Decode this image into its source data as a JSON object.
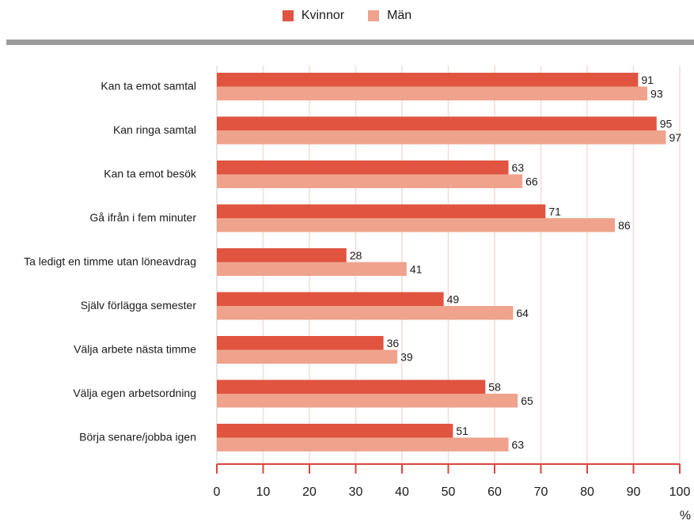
{
  "legend": [
    {
      "label": "Kvinnor",
      "color": "#e05440"
    },
    {
      "label": "Män",
      "color": "#efa38d"
    }
  ],
  "chart_data": {
    "type": "bar",
    "orientation": "horizontal",
    "categories": [
      "Kan ta emot samtal",
      "Kan ringa samtal",
      "Kan ta emot besök",
      "Gå ifrån i fem minuter",
      "Ta ledigt en timme utan löneavdrag",
      "Själv förlägga semester",
      "Välja arbete nästa timme",
      "Välja egen arbetsordning",
      "Börja senare/jobba igen"
    ],
    "series": [
      {
        "name": "Kvinnor",
        "color": "#e05440",
        "values": [
          91,
          95,
          63,
          71,
          28,
          49,
          36,
          58,
          51
        ]
      },
      {
        "name": "Män",
        "color": "#efa38d",
        "values": [
          93,
          97,
          66,
          86,
          41,
          64,
          39,
          65,
          63
        ]
      }
    ],
    "xlim": [
      0,
      100
    ],
    "xticks": [
      0,
      10,
      20,
      30,
      40,
      50,
      60,
      70,
      80,
      90,
      100
    ],
    "xunit": "%",
    "grid": true,
    "axis_color": "#d9473a",
    "grid_color": "#f3dcd4",
    "legend_position": "top-center"
  }
}
